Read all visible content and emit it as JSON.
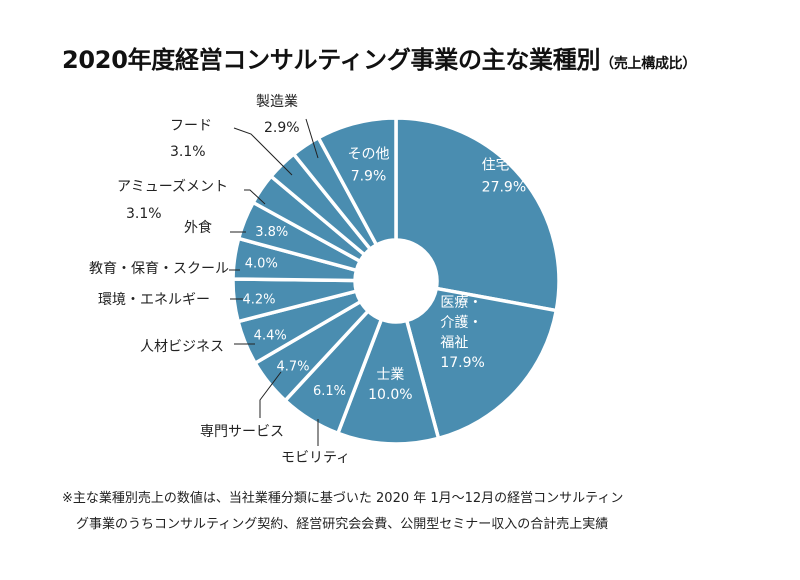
{
  "chart_data": {
    "type": "pie",
    "title": "2020年度経営コンサルティング事業の主な業種別",
    "subtitle": "（売上構成比）",
    "colors": {
      "slice": "#4a8db0",
      "border": "#ffffff",
      "leader": "#222222"
    },
    "slices": [
      {
        "label": "住宅・不動産",
        "value": 27.9,
        "display": "27.9%"
      },
      {
        "label": "医療・介護・福祉",
        "label_lines": [
          "医療・",
          "介護・",
          "福祉"
        ],
        "value": 17.9,
        "display": "17.9%"
      },
      {
        "label": "士業",
        "value": 10.0,
        "display": "10.0%"
      },
      {
        "label": "モビリティ",
        "value": 6.1,
        "display": "6.1%"
      },
      {
        "label": "専門サービス",
        "value": 4.7,
        "display": "4.7%"
      },
      {
        "label": "人材ビジネス",
        "value": 4.4,
        "display": "4.4%"
      },
      {
        "label": "環境・エネルギー",
        "value": 4.2,
        "display": "4.2%"
      },
      {
        "label": "教育・保育・スクール",
        "value": 4.0,
        "display": "4.0%"
      },
      {
        "label": "外食",
        "value": 3.8,
        "display": "3.8%"
      },
      {
        "label": "アミューズメント",
        "value": 3.1,
        "display": "3.1%"
      },
      {
        "label": "フード",
        "value": 3.1,
        "display": "3.1%"
      },
      {
        "label": "製造業",
        "value": 2.9,
        "display": "2.9%"
      },
      {
        "label": "その他",
        "value": 7.9,
        "display": "7.9%"
      }
    ]
  },
  "note": {
    "line1": "※主な業種別売上の数値は、当社業種分類に基づいた 2020 年 1月～12月の経営コンサルティン",
    "line2": "グ事業のうちコンサルティング契約、経営研究会会費、公開型セミナー収入の合計売上実績"
  }
}
